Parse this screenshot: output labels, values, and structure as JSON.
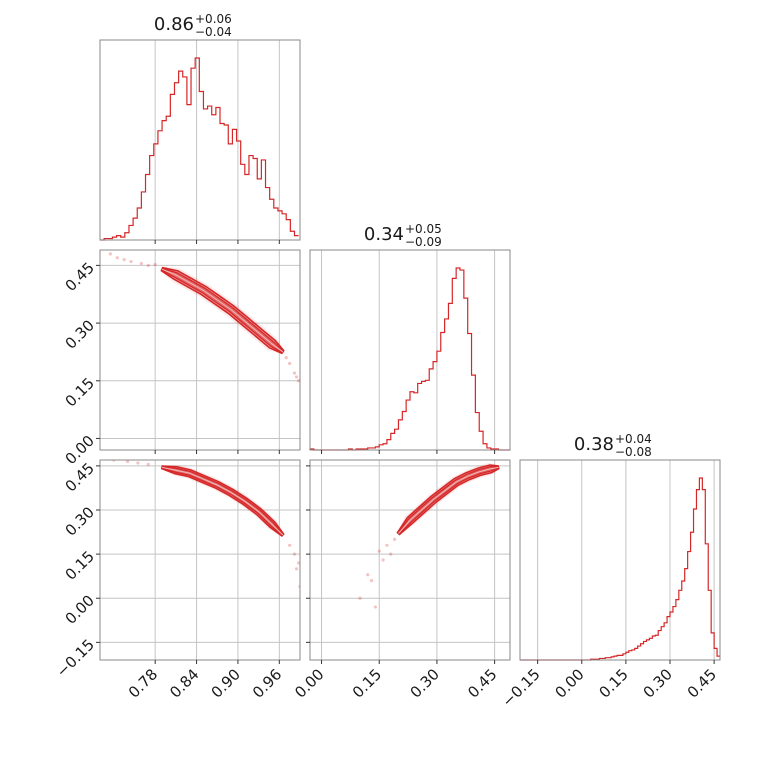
{
  "chart_data": {
    "type": "corner",
    "color": "#d62728",
    "n_params": 3,
    "params": [
      {
        "title": {
          "value": "0.86",
          "plus": "+0.06",
          "minus": "−0.04"
        },
        "range": [
          0.7,
          0.99
        ],
        "ticks": [
          0.78,
          0.84,
          0.9,
          0.96
        ],
        "tick_labels": [
          "0.78",
          "0.84",
          "0.90",
          "0.96"
        ]
      },
      {
        "title": {
          "value": "0.34",
          "plus": "+0.05",
          "minus": "−0.09"
        },
        "range": [
          -0.03,
          0.49
        ],
        "ticks": [
          0.0,
          0.15,
          0.3,
          0.45
        ],
        "tick_labels": [
          "0.00",
          "0.15",
          "0.30",
          "0.45"
        ]
      },
      {
        "title": {
          "value": "0.38",
          "plus": "+0.04",
          "minus": "−0.08"
        },
        "range": [
          -0.21,
          0.47
        ],
        "ticks": [
          -0.15,
          0.0,
          0.15,
          0.3,
          0.45
        ],
        "tick_labels": [
          "−0.15",
          "0.00",
          "0.15",
          "0.30",
          "0.45"
        ]
      }
    ],
    "histograms": [
      {
        "param": 0,
        "bin_edges": [
          0.7,
          0.706,
          0.712,
          0.718,
          0.724,
          0.73,
          0.736,
          0.742,
          0.748,
          0.754,
          0.76,
          0.766,
          0.772,
          0.778,
          0.784,
          0.79,
          0.796,
          0.802,
          0.808,
          0.814,
          0.82,
          0.826,
          0.832,
          0.838,
          0.844,
          0.85,
          0.856,
          0.862,
          0.868,
          0.874,
          0.88,
          0.886,
          0.892,
          0.898,
          0.904,
          0.91,
          0.916,
          0.922,
          0.928,
          0.934,
          0.94,
          0.946,
          0.952,
          0.958,
          0.964,
          0.97,
          0.976,
          0.982,
          0.988
        ],
        "counts": [
          0,
          1,
          1,
          2,
          3,
          2,
          5,
          10,
          15,
          22,
          33,
          45,
          58,
          66,
          75,
          82,
          85,
          100,
          108,
          116,
          112,
          93,
          118,
          125,
          102,
          90,
          92,
          86,
          91,
          80,
          79,
          66,
          76,
          68,
          52,
          45,
          58,
          56,
          42,
          55,
          36,
          28,
          22,
          20,
          18,
          14,
          6,
          3
        ]
      },
      {
        "param": 1,
        "bin_edges": [
          -0.03,
          -0.02,
          -0.01,
          0.0,
          0.01,
          0.02,
          0.03,
          0.04,
          0.05,
          0.06,
          0.07,
          0.08,
          0.09,
          0.1,
          0.11,
          0.12,
          0.13,
          0.14,
          0.15,
          0.16,
          0.17,
          0.18,
          0.19,
          0.2,
          0.21,
          0.22,
          0.23,
          0.24,
          0.25,
          0.26,
          0.27,
          0.28,
          0.29,
          0.3,
          0.31,
          0.32,
          0.33,
          0.34,
          0.35,
          0.36,
          0.37,
          0.38,
          0.39,
          0.4,
          0.41,
          0.42,
          0.43,
          0.44,
          0.45,
          0.46,
          0.47,
          0.48,
          0.49
        ],
        "counts": [
          1,
          0,
          0,
          0,
          0,
          0,
          0,
          0,
          0,
          0,
          1,
          0,
          1,
          1,
          1,
          2,
          2,
          3,
          5,
          6,
          10,
          16,
          20,
          29,
          37,
          48,
          56,
          55,
          64,
          66,
          67,
          78,
          85,
          95,
          113,
          126,
          141,
          165,
          175,
          173,
          146,
          112,
          72,
          36,
          18,
          6,
          2,
          1,
          1,
          0,
          0,
          0
        ]
      },
      {
        "param": 2,
        "bin_edges": [
          -0.21,
          -0.2,
          -0.19,
          -0.18,
          -0.17,
          -0.16,
          -0.15,
          -0.14,
          -0.13,
          -0.12,
          -0.11,
          -0.1,
          -0.09,
          -0.08,
          -0.07,
          -0.06,
          -0.05,
          -0.04,
          -0.03,
          -0.02,
          -0.01,
          0.0,
          0.01,
          0.02,
          0.03,
          0.04,
          0.05,
          0.06,
          0.07,
          0.08,
          0.09,
          0.1,
          0.11,
          0.12,
          0.13,
          0.14,
          0.15,
          0.16,
          0.17,
          0.18,
          0.19,
          0.2,
          0.21,
          0.22,
          0.23,
          0.24,
          0.25,
          0.26,
          0.27,
          0.28,
          0.29,
          0.3,
          0.31,
          0.32,
          0.33,
          0.34,
          0.35,
          0.36,
          0.37,
          0.38,
          0.39,
          0.4,
          0.41,
          0.42,
          0.43,
          0.44,
          0.45,
          0.46,
          0.47
        ],
        "counts": [
          0,
          0,
          0,
          0,
          0,
          0,
          0,
          0,
          0,
          0,
          0,
          0,
          0,
          0,
          0,
          0,
          0,
          0,
          0,
          0,
          0,
          0,
          0,
          0,
          1,
          1,
          1,
          2,
          2,
          3,
          3,
          4,
          5,
          6,
          6,
          8,
          10,
          12,
          13,
          15,
          18,
          21,
          24,
          26,
          28,
          31,
          32,
          38,
          43,
          48,
          56,
          62,
          69,
          78,
          90,
          102,
          118,
          140,
          165,
          195,
          220,
          235,
          220,
          150,
          90,
          35,
          15,
          5
        ]
      }
    ],
    "joint_panels": [
      {
        "x_param": 0,
        "y_param": 1,
        "ridge": [
          [
            0.79,
            0.44
          ],
          [
            0.81,
            0.425
          ],
          [
            0.83,
            0.405
          ],
          [
            0.85,
            0.385
          ],
          [
            0.87,
            0.36
          ],
          [
            0.89,
            0.335
          ],
          [
            0.91,
            0.305
          ],
          [
            0.93,
            0.275
          ],
          [
            0.95,
            0.245
          ],
          [
            0.965,
            0.225
          ]
        ],
        "width": 0.012,
        "scatter": [
          [
            0.715,
            0.48
          ],
          [
            0.725,
            0.47
          ],
          [
            0.735,
            0.465
          ],
          [
            0.745,
            0.46
          ],
          [
            0.76,
            0.455
          ],
          [
            0.77,
            0.45
          ],
          [
            0.78,
            0.452
          ],
          [
            0.975,
            0.195
          ],
          [
            0.982,
            0.17
          ],
          [
            0.988,
            0.15
          ],
          [
            0.985,
            0.16
          ],
          [
            0.97,
            0.21
          ]
        ]
      },
      {
        "x_param": 0,
        "y_param": 2,
        "ridge": [
          [
            0.79,
            0.445
          ],
          [
            0.81,
            0.435
          ],
          [
            0.83,
            0.425
          ],
          [
            0.85,
            0.405
          ],
          [
            0.87,
            0.385
          ],
          [
            0.89,
            0.36
          ],
          [
            0.91,
            0.33
          ],
          [
            0.93,
            0.295
          ],
          [
            0.95,
            0.25
          ],
          [
            0.965,
            0.215
          ]
        ],
        "width": 0.012,
        "scatter": [
          [
            0.72,
            0.47
          ],
          [
            0.74,
            0.465
          ],
          [
            0.755,
            0.46
          ],
          [
            0.77,
            0.455
          ],
          [
            0.975,
            0.18
          ],
          [
            0.982,
            0.15
          ],
          [
            0.988,
            0.12
          ],
          [
            0.992,
            0.08
          ],
          [
            0.99,
            0.04
          ],
          [
            0.985,
            0.1
          ]
        ]
      },
      {
        "x_param": 1,
        "y_param": 2,
        "ridge": [
          [
            0.2,
            0.22
          ],
          [
            0.23,
            0.265
          ],
          [
            0.26,
            0.3
          ],
          [
            0.29,
            0.335
          ],
          [
            0.32,
            0.365
          ],
          [
            0.35,
            0.395
          ],
          [
            0.38,
            0.415
          ],
          [
            0.41,
            0.43
          ],
          [
            0.44,
            0.44
          ],
          [
            0.46,
            0.445
          ]
        ],
        "width": 0.013,
        "scatter": [
          [
            0.15,
            0.16
          ],
          [
            0.17,
            0.18
          ],
          [
            0.16,
            0.13
          ],
          [
            0.13,
            0.06
          ],
          [
            0.1,
            0.0
          ],
          [
            0.14,
            -0.03
          ],
          [
            0.18,
            0.15
          ],
          [
            0.12,
            0.08
          ],
          [
            0.19,
            0.2
          ]
        ]
      }
    ]
  }
}
